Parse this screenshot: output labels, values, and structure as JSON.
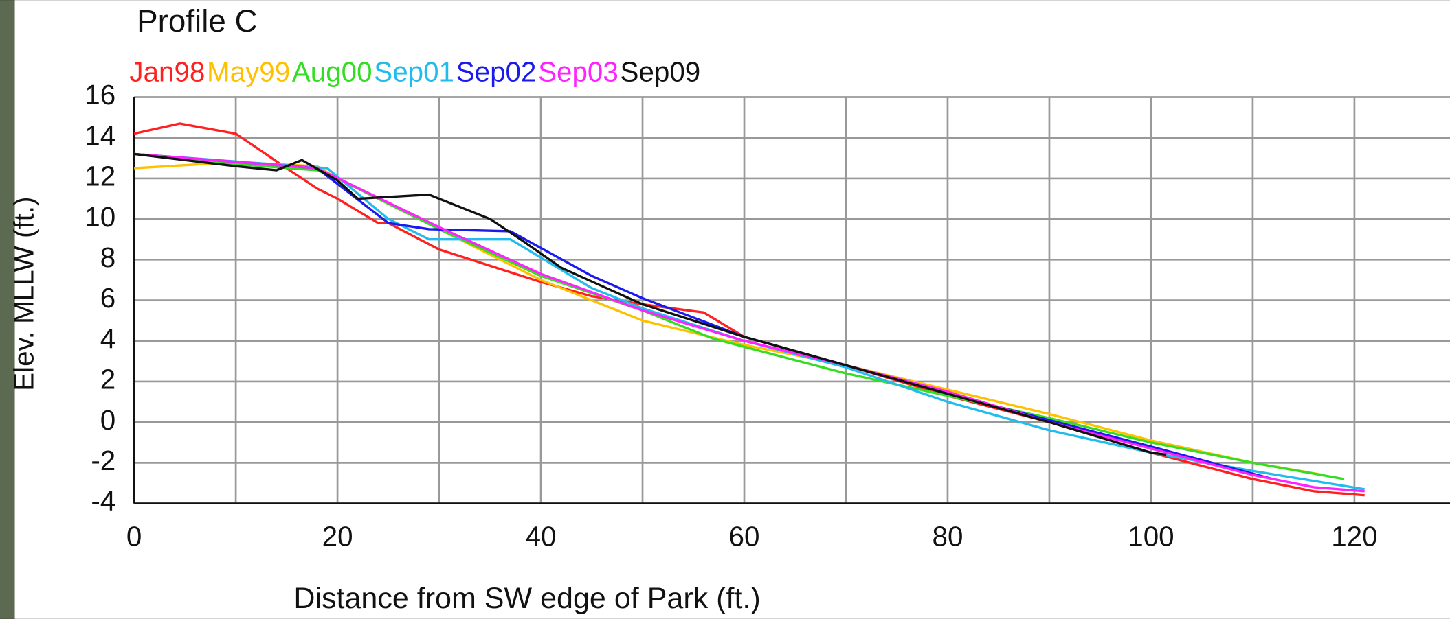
{
  "chart_data": {
    "type": "line",
    "title": "Profile C",
    "x_label": "Distance from SW edge of Park (ft.)",
    "y_label": "Elev. MLLW (ft.)",
    "xlim": [
      0,
      129.4
    ],
    "ylim": [
      -4,
      16
    ],
    "xticks": [
      0,
      20,
      40,
      60,
      80,
      100,
      120
    ],
    "x_grid": [
      10,
      30,
      50,
      70,
      90,
      110
    ],
    "yticks": [
      -4,
      -2,
      0,
      2,
      4,
      6,
      8,
      10,
      12,
      14,
      16
    ],
    "grid": true,
    "series": [
      {
        "name": "Jan98",
        "color": "#ff2020",
        "x": [
          0,
          4.5,
          10,
          15,
          18,
          20,
          24,
          25,
          30,
          35,
          40,
          45,
          50,
          56,
          60,
          70,
          80,
          90,
          100,
          110,
          116,
          121
        ],
        "values": [
          14.2,
          14.7,
          14.2,
          12.5,
          11.5,
          11,
          9.8,
          9.8,
          8.5,
          7.7,
          6.9,
          6.2,
          5.8,
          5.4,
          4.2,
          2.8,
          1.3,
          0,
          -1.5,
          -2.8,
          -3.4,
          -3.6
        ]
      },
      {
        "name": "May99",
        "color": "#ffc000",
        "x": [
          0,
          10,
          18,
          20,
          30,
          40,
          50,
          60,
          70,
          80,
          90,
          100,
          110,
          117
        ],
        "values": [
          12.5,
          12.8,
          12.6,
          12,
          9.5,
          7,
          5,
          3.8,
          2.8,
          1.6,
          0.4,
          -0.9,
          -2,
          -2.6
        ]
      },
      {
        "name": "Aug00",
        "color": "#33dd22",
        "x": [
          0,
          10,
          18,
          20,
          30,
          40,
          50,
          57,
          70,
          80,
          90,
          100,
          110,
          119
        ],
        "values": [
          13.2,
          12.7,
          12.4,
          12,
          9.5,
          7.2,
          5.5,
          4.1,
          2.4,
          1.3,
          0.2,
          -1,
          -2,
          -2.8
        ]
      },
      {
        "name": "Sep01",
        "color": "#22bbee",
        "x": [
          0,
          19,
          25,
          29,
          37,
          45,
          50,
          60,
          70,
          80,
          90,
          100,
          110,
          121
        ],
        "values": [
          13.2,
          12.5,
          10,
          9,
          9,
          6.6,
          5.6,
          4,
          2.7,
          1,
          -0.4,
          -1.5,
          -2.4,
          -3.3
        ]
      },
      {
        "name": "Sep02",
        "color": "#1a1aee",
        "x": [
          0,
          18,
          25,
          29,
          37,
          45,
          50,
          60,
          70,
          80,
          90,
          100,
          112
        ],
        "values": [
          13.2,
          12.5,
          9.8,
          9.5,
          9.4,
          7.2,
          6.1,
          4.2,
          2.8,
          1.4,
          0.1,
          -1.2,
          -2.8
        ]
      },
      {
        "name": "Sep03",
        "color": "#ff22ff",
        "x": [
          0,
          18,
          30,
          40,
          50,
          60,
          70,
          80,
          90,
          100,
          110,
          116,
          121
        ],
        "values": [
          13.2,
          12.5,
          9.6,
          7.3,
          5.5,
          4,
          2.8,
          1.5,
          0,
          -1.3,
          -2.6,
          -3.2,
          -3.4
        ]
      },
      {
        "name": "Sep09",
        "color": "#111111",
        "x": [
          0,
          10,
          14,
          16.5,
          20,
          22,
          29,
          35,
          38,
          42,
          50,
          60,
          70,
          80,
          90,
          100,
          101.5
        ],
        "values": [
          13.2,
          12.6,
          12.4,
          12.9,
          11.9,
          11,
          11.2,
          10,
          9,
          7.6,
          5.8,
          4.2,
          2.8,
          1.4,
          0,
          -1.5,
          -1.6
        ]
      }
    ]
  }
}
